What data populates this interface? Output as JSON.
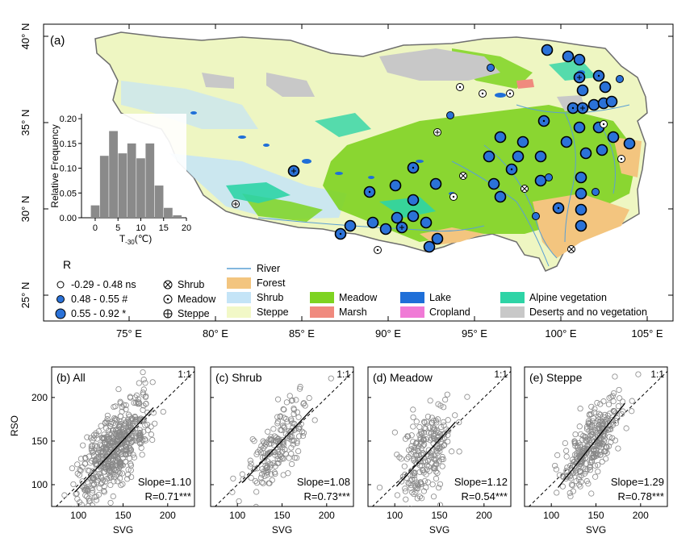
{
  "figure": {
    "map": {
      "panel_label": "(a)",
      "lat_labels": [
        "40° N",
        "35° N",
        "30° N",
        "25° N"
      ],
      "lon_labels": [
        "75° E",
        "80° E",
        "85° E",
        "90° E",
        "95° E",
        "100° E",
        "105° E"
      ],
      "inset": {
        "ylabel": "Relative Frequency",
        "xlabel": "T",
        "xlabel_sub": "-30",
        "xlabel_unit": "(℃)",
        "ytick_labels": [
          "0.20",
          "0.15",
          "0.10",
          "0.05",
          "0.00"
        ],
        "xtick_labels": [
          "0",
          "5",
          "10",
          "15",
          "20"
        ]
      },
      "r_legend": {
        "title": "R",
        "items": [
          {
            "label": "-0.29 - 0.48 ns"
          },
          {
            "label": "0.48 - 0.55 #"
          },
          {
            "label": "0.55 - 0.92 *"
          }
        ]
      },
      "symbol_legend": [
        {
          "label": "Shrub",
          "symbol": "cross-circle"
        },
        {
          "label": "Meadow",
          "symbol": "dot-circle"
        },
        {
          "label": "Steppe",
          "symbol": "plus-circle"
        }
      ],
      "landcover_legend": [
        {
          "label": "River",
          "kind": "line",
          "color": "#5a9fd4"
        },
        {
          "label": "Forest",
          "kind": "swatch",
          "color": "#f3c57f"
        },
        {
          "label": "Shrub",
          "kind": "swatch",
          "color": "#c4e4f7"
        },
        {
          "label": "Steppe",
          "kind": "swatch",
          "color": "#f2f8c7"
        },
        {
          "label": "Meadow",
          "kind": "swatch",
          "color": "#7ed321"
        },
        {
          "label": "Marsh",
          "kind": "swatch",
          "color": "#f08a7e"
        },
        {
          "label": "Lake",
          "kind": "swatch",
          "color": "#1f6fd8"
        },
        {
          "label": "Cropland",
          "kind": "swatch",
          "color": "#f07ad6"
        },
        {
          "label": "Alpine vegetation",
          "kind": "swatch",
          "color": "#2ed4a6"
        },
        {
          "label": "Deserts and no vegetation",
          "kind": "swatch",
          "color": "#c8c8c8"
        }
      ]
    },
    "scatter_common": {
      "xlabel": "SVG",
      "ylabel": "RSO",
      "one_to_one_label": "1:1",
      "xtick_labels": [
        "100",
        "150",
        "200"
      ],
      "ytick_labels": [
        "200",
        "150",
        "100"
      ]
    }
  },
  "chart_data": [
    {
      "type": "bar",
      "title": "",
      "xlabel": "T-30(℃)",
      "ylabel": "Relative Frequency",
      "x": [
        0,
        2,
        4,
        6,
        8,
        10,
        12,
        14,
        16,
        18
      ],
      "values": [
        0.025,
        0.125,
        0.175,
        0.13,
        0.15,
        0.12,
        0.15,
        0.065,
        0.02,
        0.005
      ],
      "xlim": [
        -3,
        20
      ],
      "ylim": [
        0,
        0.21
      ]
    },
    {
      "type": "scatter",
      "title": "(b) All",
      "xlabel": "SVG",
      "ylabel": "RSO",
      "slope_text": "Slope=1.10",
      "r_text": "R=0.71***",
      "slope": 1.1,
      "r": 0.71,
      "n_points": 520,
      "x_center": 140,
      "x_spread": 20,
      "xlim": [
        70,
        230
      ],
      "ylim": [
        75,
        235
      ]
    },
    {
      "type": "scatter",
      "title": "(c) Shrub",
      "xlabel": "SVG",
      "ylabel": "RSO",
      "slope_text": "Slope=1.08",
      "r_text": "R=0.73***",
      "slope": 1.08,
      "r": 0.73,
      "n_points": 190,
      "x_center": 145,
      "x_spread": 18,
      "xlim": [
        70,
        230
      ],
      "ylim": [
        75,
        235
      ]
    },
    {
      "type": "scatter",
      "title": "(d) Meadow",
      "xlabel": "SVG",
      "ylabel": "RSO",
      "slope_text": "Slope=1.12",
      "r_text": "R=0.54***",
      "slope": 1.12,
      "r": 0.54,
      "n_points": 230,
      "x_center": 135,
      "x_spread": 15,
      "xlim": [
        70,
        230
      ],
      "ylim": [
        75,
        235
      ]
    },
    {
      "type": "scatter",
      "title": "(e) Steppe",
      "xlabel": "SVG",
      "ylabel": "RSO",
      "slope_text": "Slope=1.29",
      "r_text": "R=0.78***",
      "slope": 1.29,
      "r": 0.78,
      "n_points": 300,
      "x_center": 145,
      "x_spread": 17,
      "xlim": [
        70,
        230
      ],
      "ylim": [
        75,
        235
      ]
    }
  ]
}
